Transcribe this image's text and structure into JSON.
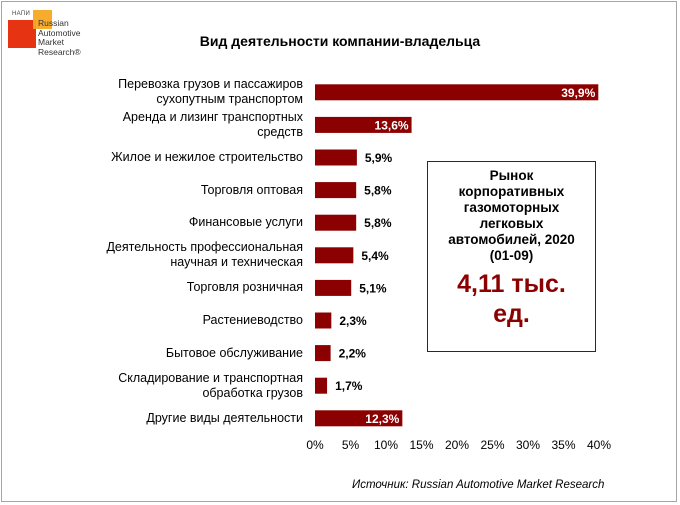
{
  "logo": {
    "tag": "НАПИ",
    "name_lines": [
      "Russian",
      "Automotive",
      "Market",
      "Research®"
    ]
  },
  "chart_data": {
    "type": "bar",
    "orientation": "horizontal",
    "title": "Вид деятельности компании-владельца",
    "categories": [
      "Перевозка грузов и пассажиров сухопутным транспортом",
      "Аренда и лизинг транспортных средств",
      "Жилое и нежилое строительство",
      "Торговля оптовая",
      "Финансовые услуги",
      "Деятельность профессиональная научная и техническая",
      "Торговля розничная",
      "Растениеводство",
      "Бытовое обслуживание",
      "Складирование и транспортная обработка грузов",
      "Другие виды деятельности"
    ],
    "category_lines": [
      [
        "Перевозка грузов и пассажиров",
        "сухопутным транспортом"
      ],
      [
        "Аренда и лизинг транспортных",
        "средств"
      ],
      [
        "Жилое и нежилое строительство"
      ],
      [
        "Торговля оптовая"
      ],
      [
        "Финансовые услуги"
      ],
      [
        "Деятельность профессиональная",
        "научная и техническая"
      ],
      [
        "Торговля розничная"
      ],
      [
        "Растениеводство"
      ],
      [
        "Бытовое обслуживание"
      ],
      [
        "Складирование и транспортная",
        "обработка грузов"
      ],
      [
        "Другие виды деятельности"
      ]
    ],
    "values": [
      39.9,
      13.6,
      5.9,
      5.8,
      5.8,
      5.4,
      5.1,
      2.3,
      2.2,
      1.7,
      12.3
    ],
    "data_labels": [
      "39,9%",
      "13,6%",
      "5,9%",
      "5,8%",
      "5,8%",
      "5,4%",
      "5,1%",
      "2,3%",
      "2,2%",
      "1,7%",
      "12,3%"
    ],
    "label_inside": [
      true,
      true,
      false,
      false,
      false,
      false,
      false,
      false,
      false,
      false,
      true
    ],
    "xlim": [
      0,
      40
    ],
    "x_ticks": [
      "0%",
      "5%",
      "10%",
      "15%",
      "20%",
      "25%",
      "30%",
      "35%",
      "40%"
    ],
    "grid": false,
    "legend": "none",
    "bar_color": "#8b0000"
  },
  "callout": {
    "text": "Рынок корпоративных газомоторных легковых автомобилей, 2020 (01-09)",
    "text_lines": [
      "Рынок",
      "корпоративных",
      "газомоторных",
      "легковых",
      "автомобилей, 2020",
      "(01-09)"
    ],
    "value_lines": [
      "4,11 тыс.",
      "ед."
    ]
  },
  "source": "Источник: Russian Automotive Market Research",
  "colors": {
    "bar": "#8b0000",
    "callout_value": "#8b0000",
    "logo_red": "#e63312",
    "logo_orange": "#f7a823"
  }
}
